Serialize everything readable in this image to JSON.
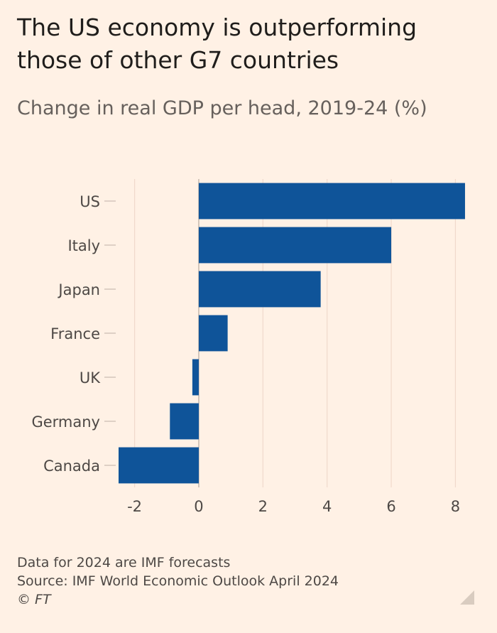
{
  "title_lines": [
    "The US economy is outperforming",
    "those of other G7 countries"
  ],
  "subtitle": "Change in real GDP per head, 2019-24 (%)",
  "footer": {
    "note": "Data for 2024 are IMF forecasts",
    "source": "Source: IMF World Economic Outlook April 2024",
    "copyright": "© FT"
  },
  "colors": {
    "bar": "#0f5499",
    "background": "#fff1e5",
    "gridline": "#f0d9cc",
    "zero_line": "#c9bbb0",
    "tick_label": "#4d4845"
  },
  "chart_data": {
    "type": "bar",
    "orientation": "horizontal",
    "title": "The US economy is outperforming those of other G7 countries",
    "subtitle": "Change in real GDP per head, 2019-24 (%)",
    "categories": [
      "US",
      "Italy",
      "Japan",
      "France",
      "UK",
      "Germany",
      "Canada"
    ],
    "values": [
      8.3,
      6.0,
      3.8,
      0.9,
      -0.2,
      -0.9,
      -2.5
    ],
    "xlim": [
      -2.5,
      8.5
    ],
    "xticks": [
      -2,
      0,
      2,
      4,
      6,
      8
    ],
    "xtick_labels": [
      "-2",
      "0",
      "2",
      "4",
      "6",
      "8"
    ],
    "xlabel": "",
    "ylabel": "",
    "grid": true,
    "legend": "none"
  }
}
